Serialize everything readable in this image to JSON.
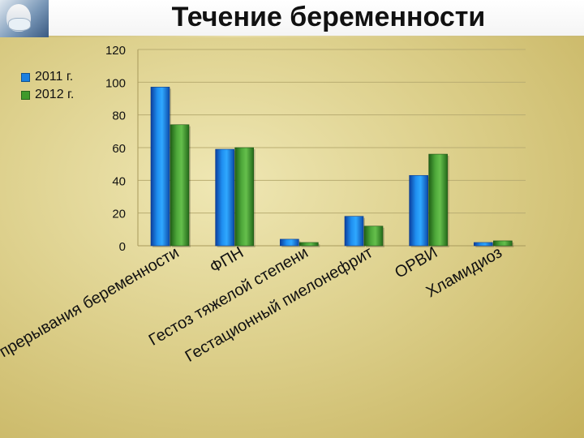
{
  "title": "Течение беременности",
  "logo_icon": "doctor-mask-icon",
  "chart_data": {
    "type": "bar",
    "categories": [
      "Угроза прерывания беременности",
      "ФПН",
      "Гестоз тяжелой степени",
      "Гестационный пиелонефрит",
      "ОРВИ",
      "Хламидиоз"
    ],
    "series": [
      {
        "name": "2011 г.",
        "color": "#1a7fe0",
        "values": [
          97,
          59,
          4,
          18,
          43,
          2
        ]
      },
      {
        "name": "2012 г.",
        "color": "#3f9a2a",
        "values": [
          74,
          60,
          2,
          12,
          56,
          3
        ]
      }
    ],
    "ylim": [
      0,
      120
    ],
    "yticks": [
      "0",
      "20",
      "40",
      "60",
      "80",
      "100",
      "120"
    ],
    "grid": true,
    "legend": "top-left"
  }
}
